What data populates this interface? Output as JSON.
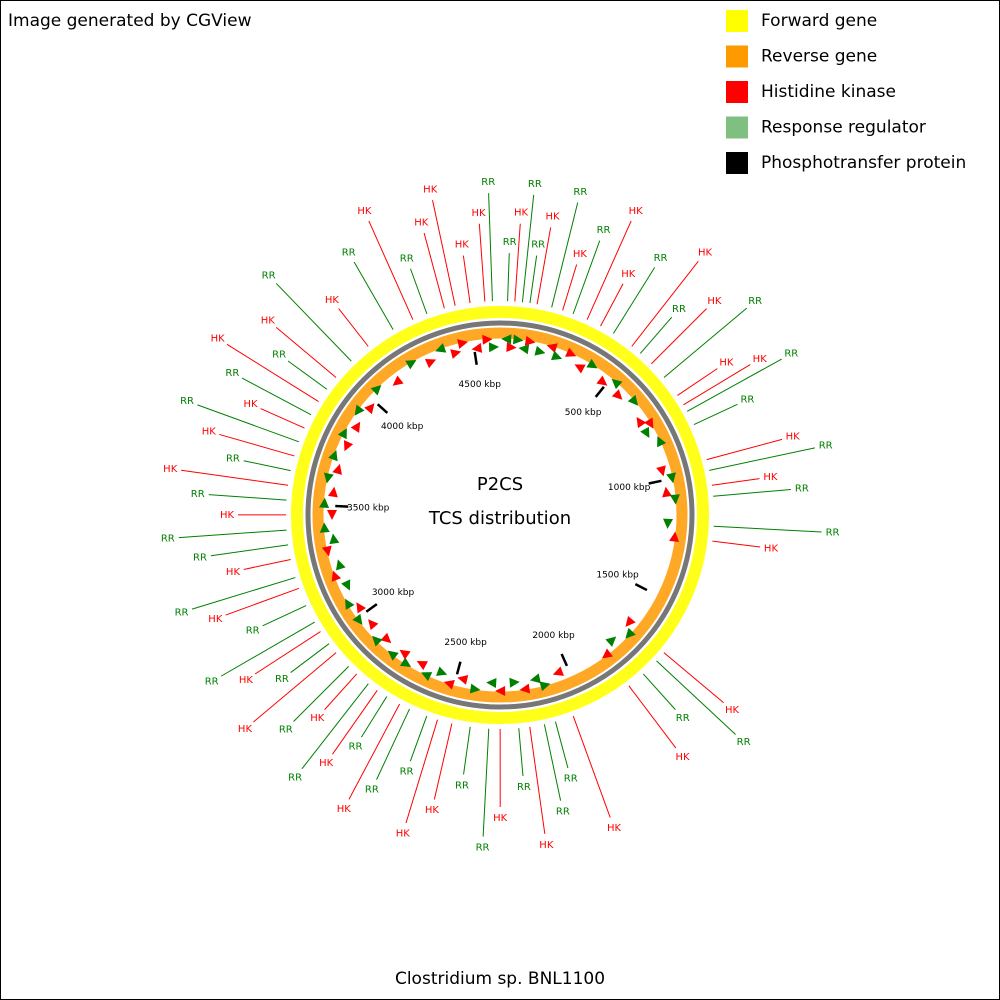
{
  "header": {
    "credit": "Image generated by CGView"
  },
  "legend": [
    {
      "name": "Forward gene",
      "color": "#ffff00"
    },
    {
      "name": "Reverse gene",
      "color": "#ff9900"
    },
    {
      "name": "Histidine kinase",
      "color": "#ff0000"
    },
    {
      "name": "Response regulator",
      "color": "#7fbf7f"
    },
    {
      "name": "Phosphotransfer protein",
      "color": "#000000"
    }
  ],
  "map": {
    "center_title": "P2CS",
    "center_subtitle": "TCS distribution",
    "organism": "Clostridium sp. BNL1100",
    "genome_range": [
      0,
      4613
    ],
    "scale_ticks": [
      {
        "value": 500,
        "label": "500 kbp"
      },
      {
        "value": 1000,
        "label": "1000 kbp"
      },
      {
        "value": 1500,
        "label": "1500 kbp"
      },
      {
        "value": 2000,
        "label": "2000 kbp"
      },
      {
        "value": 2500,
        "label": "2500 kbp"
      },
      {
        "value": 3000,
        "label": "3000 kbp"
      },
      {
        "value": 3500,
        "label": "3500 kbp"
      },
      {
        "value": 4000,
        "label": "4000 kbp"
      },
      {
        "value": 4500,
        "label": "4500 kbp"
      }
    ],
    "features": [
      {
        "label": "RR",
        "position": 26,
        "color": "#008000"
      },
      {
        "label": "HK",
        "position": 51,
        "color": "#ff0000"
      },
      {
        "label": "RR",
        "position": 77,
        "color": "#008000"
      },
      {
        "label": "RR",
        "position": 103,
        "color": "#008000"
      },
      {
        "label": "HK",
        "position": 128,
        "color": "#ff0000"
      },
      {
        "label": "RR",
        "position": 179,
        "color": "#008000"
      },
      {
        "label": "HK",
        "position": 218,
        "color": "#ff0000"
      },
      {
        "label": "RR",
        "position": 256,
        "color": "#008000"
      },
      {
        "label": "HK",
        "position": 308,
        "color": "#ff0000"
      },
      {
        "label": "HK",
        "position": 359,
        "color": "#ff0000"
      },
      {
        "label": "RR",
        "position": 410,
        "color": "#008000"
      },
      {
        "label": "HK",
        "position": 487,
        "color": "#ff0000"
      },
      {
        "label": "RR",
        "position": 525,
        "color": "#008000"
      },
      {
        "label": "HK",
        "position": 577,
        "color": "#ff0000"
      },
      {
        "label": "RR",
        "position": 641,
        "color": "#008000"
      },
      {
        "label": "HK",
        "position": 718,
        "color": "#ff0000"
      },
      {
        "label": "HK",
        "position": 756,
        "color": "#ff0000"
      },
      {
        "label": "RR",
        "position": 782,
        "color": "#008000"
      },
      {
        "label": "RR",
        "position": 833,
        "color": "#008000"
      },
      {
        "label": "HK",
        "position": 961,
        "color": "#ff0000"
      },
      {
        "label": "RR",
        "position": 999,
        "color": "#008000"
      },
      {
        "label": "HK",
        "position": 1051,
        "color": "#ff0000"
      },
      {
        "label": "RR",
        "position": 1089,
        "color": "#008000"
      },
      {
        "label": "RR",
        "position": 1192,
        "color": "#008000"
      },
      {
        "label": "HK",
        "position": 1243,
        "color": "#ff0000"
      },
      {
        "label": "HK",
        "position": 1666,
        "color": "#ff0000"
      },
      {
        "label": "RR",
        "position": 1704,
        "color": "#008000"
      },
      {
        "label": "RR",
        "position": 1768,
        "color": "#008000"
      },
      {
        "label": "HK",
        "position": 1832,
        "color": "#ff0000"
      },
      {
        "label": "HK",
        "position": 2050,
        "color": "#ff0000"
      },
      {
        "label": "RR",
        "position": 2114,
        "color": "#008000"
      },
      {
        "label": "RR",
        "position": 2153,
        "color": "#008000"
      },
      {
        "label": "HK",
        "position": 2204,
        "color": "#ff0000"
      },
      {
        "label": "RR",
        "position": 2242,
        "color": "#008000"
      },
      {
        "label": "HK",
        "position": 2306,
        "color": "#ff0000"
      },
      {
        "label": "RR",
        "position": 2345,
        "color": "#008000"
      },
      {
        "label": "RR",
        "position": 2409,
        "color": "#008000"
      },
      {
        "label": "HK",
        "position": 2473,
        "color": "#ff0000"
      },
      {
        "label": "HK",
        "position": 2524,
        "color": "#ff0000"
      },
      {
        "label": "RR",
        "position": 2563,
        "color": "#008000"
      },
      {
        "label": "RR",
        "position": 2627,
        "color": "#008000"
      },
      {
        "label": "HK",
        "position": 2665,
        "color": "#ff0000"
      },
      {
        "label": "RR",
        "position": 2716,
        "color": "#008000"
      },
      {
        "label": "HK",
        "position": 2755,
        "color": "#ff0000"
      },
      {
        "label": "RR",
        "position": 2793,
        "color": "#008000"
      },
      {
        "label": "HK",
        "position": 2845,
        "color": "#ff0000"
      },
      {
        "label": "RR",
        "position": 2883,
        "color": "#008000"
      },
      {
        "label": "HK",
        "position": 2947,
        "color": "#ff0000"
      },
      {
        "label": "RR",
        "position": 2986,
        "color": "#008000"
      },
      {
        "label": "HK",
        "position": 3037,
        "color": "#ff0000"
      },
      {
        "label": "RR",
        "position": 3075,
        "color": "#008000"
      },
      {
        "label": "RR",
        "position": 3139,
        "color": "#008000"
      },
      {
        "label": "HK",
        "position": 3203,
        "color": "#ff0000"
      },
      {
        "label": "RR",
        "position": 3242,
        "color": "#008000"
      },
      {
        "label": "HK",
        "position": 3306,
        "color": "#ff0000"
      },
      {
        "label": "RR",
        "position": 3357,
        "color": "#008000"
      },
      {
        "label": "RR",
        "position": 3408,
        "color": "#008000"
      },
      {
        "label": "HK",
        "position": 3460,
        "color": "#ff0000"
      },
      {
        "label": "RR",
        "position": 3511,
        "color": "#008000"
      },
      {
        "label": "HK",
        "position": 3562,
        "color": "#ff0000"
      },
      {
        "label": "RR",
        "position": 3613,
        "color": "#008000"
      },
      {
        "label": "HK",
        "position": 3665,
        "color": "#ff0000"
      },
      {
        "label": "RR",
        "position": 3716,
        "color": "#008000"
      },
      {
        "label": "HK",
        "position": 3767,
        "color": "#ff0000"
      },
      {
        "label": "RR",
        "position": 3818,
        "color": "#008000"
      },
      {
        "label": "HK",
        "position": 3870,
        "color": "#ff0000"
      },
      {
        "label": "RR",
        "position": 3921,
        "color": "#008000"
      },
      {
        "label": "HK",
        "position": 3972,
        "color": "#ff0000"
      },
      {
        "label": "RR",
        "position": 4049,
        "color": "#008000"
      },
      {
        "label": "HK",
        "position": 4126,
        "color": "#ff0000"
      },
      {
        "label": "RR",
        "position": 4229,
        "color": "#008000"
      },
      {
        "label": "HK",
        "position": 4305,
        "color": "#ff0000"
      },
      {
        "label": "RR",
        "position": 4357,
        "color": "#008000"
      },
      {
        "label": "HK",
        "position": 4420,
        "color": "#ff0000"
      },
      {
        "label": "HK",
        "position": 4458,
        "color": "#ff0000"
      },
      {
        "label": "HK",
        "position": 4510,
        "color": "#ff0000"
      },
      {
        "label": "HK",
        "position": 4561,
        "color": "#ff0000"
      },
      {
        "label": "RR",
        "position": 4587,
        "color": "#008000"
      }
    ]
  }
}
